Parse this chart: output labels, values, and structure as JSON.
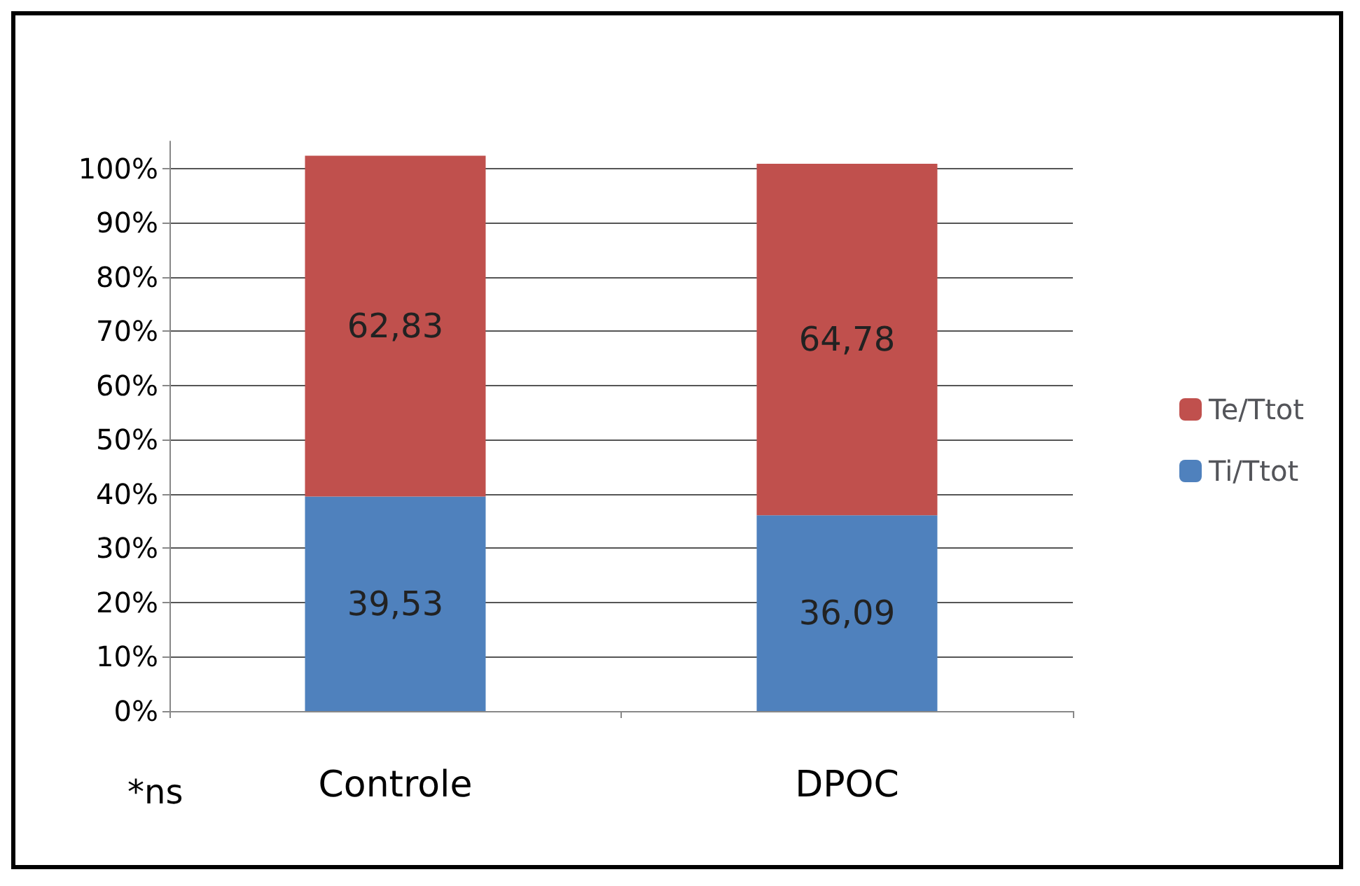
{
  "chart_data": {
    "type": "bar",
    "stacked": true,
    "categories": [
      "Controle",
      "DPOC"
    ],
    "series": [
      {
        "name": "Ti/Ttot",
        "color": "#4f81bd",
        "values": [
          39.53,
          36.09
        ],
        "value_labels": [
          "39,53",
          "36,09"
        ]
      },
      {
        "name": "Te/Ttot",
        "color": "#c0504d",
        "values": [
          62.83,
          64.78
        ],
        "value_labels": [
          "62,83",
          "64,78"
        ]
      }
    ],
    "ylim": [
      0,
      105
    ],
    "yticks": [
      {
        "value": 0,
        "label": "0%"
      },
      {
        "value": 10,
        "label": "10%"
      },
      {
        "value": 20,
        "label": "20%"
      },
      {
        "value": 30,
        "label": "30%"
      },
      {
        "value": 40,
        "label": "40%"
      },
      {
        "value": 50,
        "label": "50%"
      },
      {
        "value": 60,
        "label": "60%"
      },
      {
        "value": 70,
        "label": "70%"
      },
      {
        "value": 80,
        "label": "80%"
      },
      {
        "value": 90,
        "label": "90%"
      },
      {
        "value": 100,
        "label": "100%"
      }
    ],
    "grid": "y",
    "legend": "right",
    "annotations": [
      "*ns"
    ]
  }
}
